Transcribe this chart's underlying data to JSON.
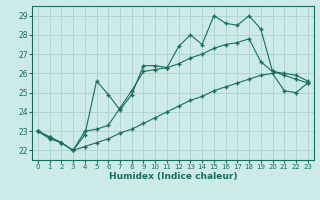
{
  "xlabel": "Humidex (Indice chaleur)",
  "ylabel": "",
  "background_color": "#cceae8",
  "grid_color": "#b0d4d0",
  "line_color": "#1a6b60",
  "xlim": [
    -0.5,
    23.5
  ],
  "ylim": [
    21.5,
    29.5
  ],
  "yticks": [
    22,
    23,
    24,
    25,
    26,
    27,
    28,
    29
  ],
  "xticks": [
    0,
    1,
    2,
    3,
    4,
    5,
    6,
    7,
    8,
    9,
    10,
    11,
    12,
    13,
    14,
    15,
    16,
    17,
    18,
    19,
    20,
    21,
    22,
    23
  ],
  "line1_x": [
    0,
    1,
    2,
    3,
    4,
    5,
    6,
    7,
    8,
    9,
    10,
    11,
    12,
    13,
    14,
    15,
    16,
    17,
    18,
    19,
    20,
    21,
    22,
    23
  ],
  "line1_y": [
    23.0,
    22.7,
    22.4,
    22.0,
    22.8,
    25.6,
    24.9,
    24.1,
    24.9,
    26.4,
    26.4,
    26.3,
    27.4,
    28.0,
    27.5,
    29.0,
    28.6,
    28.5,
    29.0,
    28.3,
    26.1,
    26.0,
    25.9,
    25.6
  ],
  "line2_x": [
    0,
    1,
    2,
    3,
    4,
    5,
    6,
    7,
    8,
    9,
    10,
    11,
    12,
    13,
    14,
    15,
    16,
    17,
    18,
    19,
    20,
    21,
    22,
    23
  ],
  "line2_y": [
    23.0,
    22.7,
    22.4,
    22.0,
    23.0,
    23.1,
    23.3,
    24.2,
    25.1,
    26.1,
    26.2,
    26.3,
    26.5,
    26.8,
    27.0,
    27.3,
    27.5,
    27.6,
    27.8,
    26.6,
    26.1,
    25.9,
    25.7,
    25.5
  ],
  "line3_x": [
    0,
    1,
    2,
    3,
    4,
    5,
    6,
    7,
    8,
    9,
    10,
    11,
    12,
    13,
    14,
    15,
    16,
    17,
    18,
    19,
    20,
    21,
    22,
    23
  ],
  "line3_y": [
    23.0,
    22.6,
    22.4,
    22.0,
    22.2,
    22.4,
    22.6,
    22.9,
    23.1,
    23.4,
    23.7,
    24.0,
    24.3,
    24.6,
    24.8,
    25.1,
    25.3,
    25.5,
    25.7,
    25.9,
    26.0,
    25.1,
    25.0,
    25.5
  ]
}
